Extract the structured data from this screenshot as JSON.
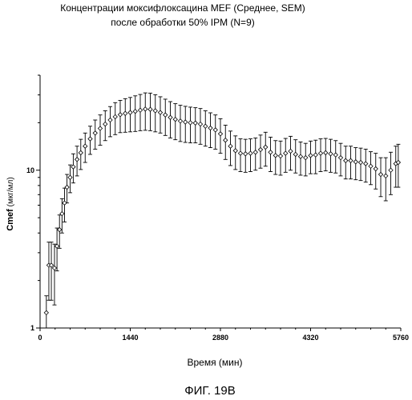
{
  "chart_data": {
    "type": "scatter",
    "title_lines": [
      "Концентрации моксифлоксацина MEF (Среднее, SEM)",
      "после обработки 50% IPM (N=9)"
    ],
    "xlabel": "Время (мин)",
    "ylabel": {
      "strong": "Cmef",
      "unit": " (мкг/мл)"
    },
    "xlim": [
      0,
      5760
    ],
    "ylim": [
      1,
      40
    ],
    "y_scale": "log",
    "x_ticks": [
      0,
      1440,
      2880,
      4320,
      5760
    ],
    "x_tick_labels": [
      "0",
      "1440",
      "2880",
      "4320",
      "5760"
    ],
    "y_ticks": [
      1,
      10
    ],
    "y_tick_labels": [
      "1",
      "10"
    ],
    "grid": false,
    "series": [
      {
        "marker": "open-diamond",
        "error_bars": "SEM",
        "points": [
          {
            "x": 100,
            "y": 1.25,
            "sem": 0.35
          },
          {
            "x": 140,
            "y": 2.5,
            "sem": 1.0
          },
          {
            "x": 180,
            "y": 2.5,
            "sem": 1.0
          },
          {
            "x": 230,
            "y": 2.4,
            "sem": 1.0
          },
          {
            "x": 270,
            "y": 3.3,
            "sem": 1.0
          },
          {
            "x": 310,
            "y": 4.2,
            "sem": 1.0
          },
          {
            "x": 350,
            "y": 5.3,
            "sem": 1.3
          },
          {
            "x": 390,
            "y": 6.2,
            "sem": 1.5
          },
          {
            "x": 430,
            "y": 7.8,
            "sem": 1.6
          },
          {
            "x": 480,
            "y": 9.0,
            "sem": 1.8
          },
          {
            "x": 530,
            "y": 10.5,
            "sem": 2.2
          },
          {
            "x": 590,
            "y": 11.7,
            "sem": 2.5
          },
          {
            "x": 650,
            "y": 12.9,
            "sem": 2.8
          },
          {
            "x": 720,
            "y": 14.2,
            "sem": 3.0
          },
          {
            "x": 800,
            "y": 15.8,
            "sem": 3.2
          },
          {
            "x": 880,
            "y": 17.2,
            "sem": 3.6
          },
          {
            "x": 960,
            "y": 18.4,
            "sem": 4.0
          },
          {
            "x": 1040,
            "y": 19.6,
            "sem": 4.2
          },
          {
            "x": 1120,
            "y": 20.8,
            "sem": 4.5
          },
          {
            "x": 1200,
            "y": 21.8,
            "sem": 5.0
          },
          {
            "x": 1280,
            "y": 22.5,
            "sem": 5.2
          },
          {
            "x": 1360,
            "y": 22.9,
            "sem": 5.5
          },
          {
            "x": 1440,
            "y": 23.2,
            "sem": 5.7
          },
          {
            "x": 1520,
            "y": 23.6,
            "sem": 6.0
          },
          {
            "x": 1600,
            "y": 24.0,
            "sem": 6.2
          },
          {
            "x": 1680,
            "y": 24.4,
            "sem": 6.5
          },
          {
            "x": 1760,
            "y": 24.3,
            "sem": 6.5
          },
          {
            "x": 1840,
            "y": 23.8,
            "sem": 6.3
          },
          {
            "x": 1920,
            "y": 23.2,
            "sem": 6.0
          },
          {
            "x": 2000,
            "y": 22.4,
            "sem": 5.8
          },
          {
            "x": 2080,
            "y": 21.6,
            "sem": 5.6
          },
          {
            "x": 2160,
            "y": 21.0,
            "sem": 5.4
          },
          {
            "x": 2240,
            "y": 20.5,
            "sem": 5.3
          },
          {
            "x": 2320,
            "y": 20.2,
            "sem": 5.2
          },
          {
            "x": 2400,
            "y": 20.0,
            "sem": 5.1
          },
          {
            "x": 2480,
            "y": 19.9,
            "sem": 5.0
          },
          {
            "x": 2560,
            "y": 19.6,
            "sem": 5.0
          },
          {
            "x": 2640,
            "y": 19.0,
            "sem": 4.8
          },
          {
            "x": 2720,
            "y": 18.5,
            "sem": 4.6
          },
          {
            "x": 2800,
            "y": 18.0,
            "sem": 4.4
          },
          {
            "x": 2880,
            "y": 17.0,
            "sem": 4.2
          },
          {
            "x": 2960,
            "y": 15.5,
            "sem": 3.8
          },
          {
            "x": 3040,
            "y": 14.2,
            "sem": 3.5
          },
          {
            "x": 3120,
            "y": 13.3,
            "sem": 3.2
          },
          {
            "x": 3200,
            "y": 12.8,
            "sem": 3.0
          },
          {
            "x": 3280,
            "y": 12.7,
            "sem": 3.0
          },
          {
            "x": 3360,
            "y": 12.8,
            "sem": 3.0
          },
          {
            "x": 3440,
            "y": 13.0,
            "sem": 3.0
          },
          {
            "x": 3520,
            "y": 13.5,
            "sem": 3.2
          },
          {
            "x": 3600,
            "y": 14.0,
            "sem": 3.4
          },
          {
            "x": 3680,
            "y": 13.0,
            "sem": 3.2
          },
          {
            "x": 3760,
            "y": 12.4,
            "sem": 3.0
          },
          {
            "x": 3840,
            "y": 12.3,
            "sem": 3.0
          },
          {
            "x": 3920,
            "y": 12.8,
            "sem": 3.1
          },
          {
            "x": 4000,
            "y": 13.2,
            "sem": 3.2
          },
          {
            "x": 4080,
            "y": 12.6,
            "sem": 3.0
          },
          {
            "x": 4160,
            "y": 12.2,
            "sem": 2.9
          },
          {
            "x": 4240,
            "y": 12.0,
            "sem": 2.8
          },
          {
            "x": 4320,
            "y": 12.4,
            "sem": 2.9
          },
          {
            "x": 4400,
            "y": 12.5,
            "sem": 3.0
          },
          {
            "x": 4480,
            "y": 12.8,
            "sem": 3.0
          },
          {
            "x": 4560,
            "y": 12.9,
            "sem": 3.0
          },
          {
            "x": 4640,
            "y": 12.7,
            "sem": 3.0
          },
          {
            "x": 4720,
            "y": 12.5,
            "sem": 2.9
          },
          {
            "x": 4800,
            "y": 12.0,
            "sem": 2.8
          },
          {
            "x": 4880,
            "y": 11.5,
            "sem": 2.7
          },
          {
            "x": 4960,
            "y": 11.5,
            "sem": 2.7
          },
          {
            "x": 5040,
            "y": 11.3,
            "sem": 2.6
          },
          {
            "x": 5120,
            "y": 11.2,
            "sem": 2.6
          },
          {
            "x": 5200,
            "y": 11.0,
            "sem": 2.6
          },
          {
            "x": 5280,
            "y": 10.6,
            "sem": 2.5
          },
          {
            "x": 5360,
            "y": 10.2,
            "sem": 2.6
          },
          {
            "x": 5440,
            "y": 9.4,
            "sem": 2.6
          },
          {
            "x": 5520,
            "y": 9.2,
            "sem": 2.8
          },
          {
            "x": 5600,
            "y": 10.0,
            "sem": 3.0
          },
          {
            "x": 5680,
            "y": 11.0,
            "sem": 3.2
          },
          {
            "x": 5720,
            "y": 11.2,
            "sem": 3.4
          }
        ]
      }
    ]
  },
  "caption": "ФИГ. 19В"
}
